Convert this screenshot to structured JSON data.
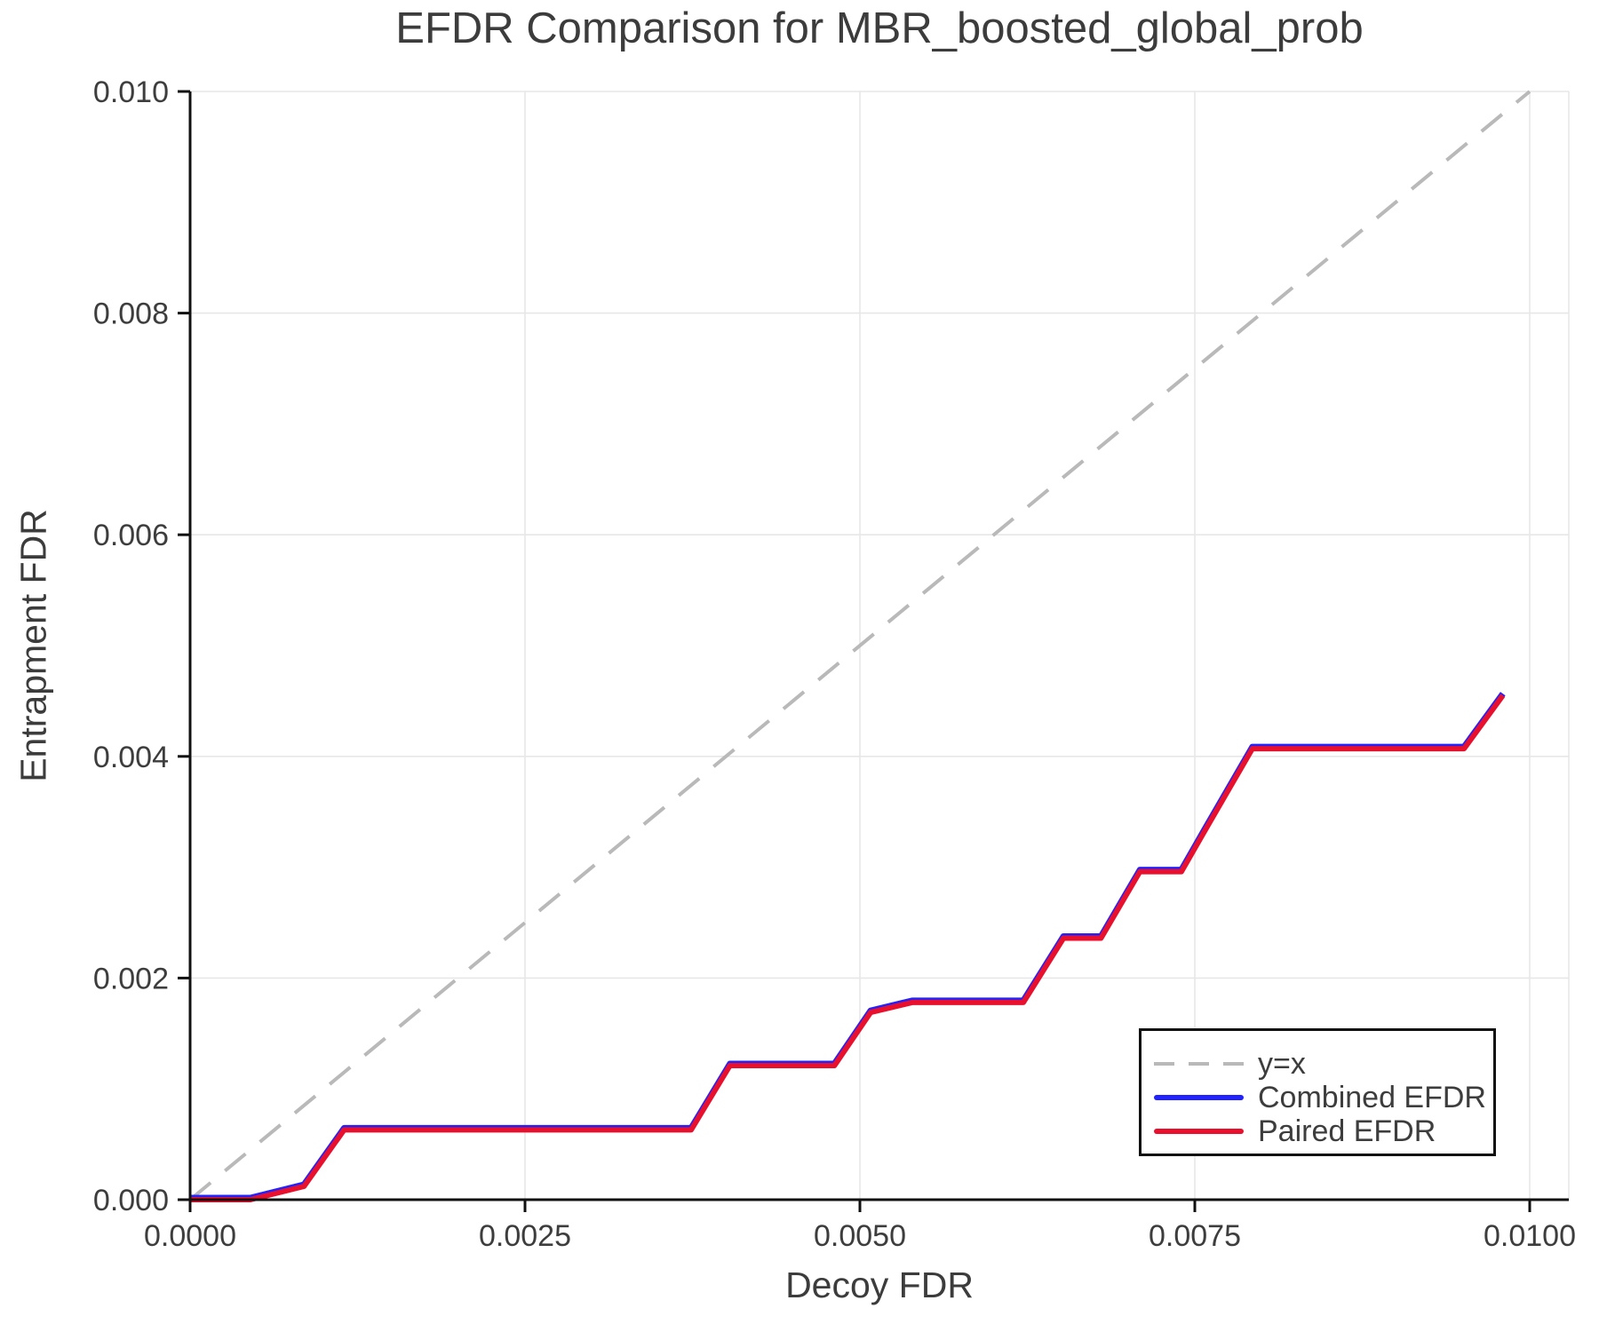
{
  "chart_data": {
    "type": "line",
    "title": "EFDR Comparison for MBR_boosted_global_prob",
    "xlabel": "Decoy FDR",
    "ylabel": "Entrapment FDR",
    "xlim": [
      0,
      0.01
    ],
    "ylim": [
      0,
      0.01
    ],
    "grid": true,
    "legend_position": "lower right",
    "x_ticks": [
      "0.0000",
      "0.0025",
      "0.0050",
      "0.0075",
      "0.0100"
    ],
    "x_tick_values": [
      0,
      0.0025,
      0.005,
      0.0075,
      0.01
    ],
    "y_ticks": [
      "0.000",
      "0.002",
      "0.004",
      "0.006",
      "0.008",
      "0.010"
    ],
    "y_tick_values": [
      0,
      0.002,
      0.004,
      0.006,
      0.008,
      0.01
    ],
    "colors": {
      "identity": "#b9b9b9",
      "combined": "#2222ff",
      "paired": "#e8102d",
      "grid": "#e7e7e7",
      "spine": "#111111",
      "text": "#3d3d3d"
    },
    "series": [
      {
        "name": "y=x",
        "style": "dashed",
        "color": "#b9b9b9",
        "points": [
          [
            0,
            0
          ],
          [
            0.01,
            0.01
          ]
        ]
      },
      {
        "name": "Combined EFDR",
        "style": "solid",
        "color": "#2222ff",
        "note": "overlaps Paired EFDR exactly; hidden beneath red line",
        "points": [
          [
            0.0,
            0.0
          ],
          [
            0.00045,
            0.0
          ],
          [
            0.00085,
            0.00012
          ],
          [
            0.00115,
            0.00063
          ],
          [
            0.00374,
            0.00063
          ],
          [
            0.00403,
            0.00121
          ],
          [
            0.00481,
            0.00121
          ],
          [
            0.00508,
            0.00169
          ],
          [
            0.00539,
            0.00178
          ],
          [
            0.00622,
            0.00178
          ],
          [
            0.00652,
            0.00236
          ],
          [
            0.0068,
            0.00236
          ],
          [
            0.00709,
            0.00296
          ],
          [
            0.0074,
            0.00296
          ],
          [
            0.00757,
            0.00332
          ],
          [
            0.00793,
            0.00407
          ],
          [
            0.00951,
            0.00407
          ],
          [
            0.0098,
            0.00455
          ]
        ]
      },
      {
        "name": "Paired EFDR",
        "style": "solid",
        "color": "#e8102d",
        "points": [
          [
            0.0,
            0.0
          ],
          [
            0.00045,
            0.0
          ],
          [
            0.00085,
            0.00012
          ],
          [
            0.00115,
            0.00063
          ],
          [
            0.00374,
            0.00063
          ],
          [
            0.00403,
            0.00121
          ],
          [
            0.00481,
            0.00121
          ],
          [
            0.00508,
            0.00169
          ],
          [
            0.00539,
            0.00178
          ],
          [
            0.00622,
            0.00178
          ],
          [
            0.00652,
            0.00236
          ],
          [
            0.0068,
            0.00236
          ],
          [
            0.00709,
            0.00296
          ],
          [
            0.0074,
            0.00296
          ],
          [
            0.00757,
            0.00332
          ],
          [
            0.00793,
            0.00407
          ],
          [
            0.00951,
            0.00407
          ],
          [
            0.0098,
            0.00455
          ]
        ]
      }
    ]
  }
}
